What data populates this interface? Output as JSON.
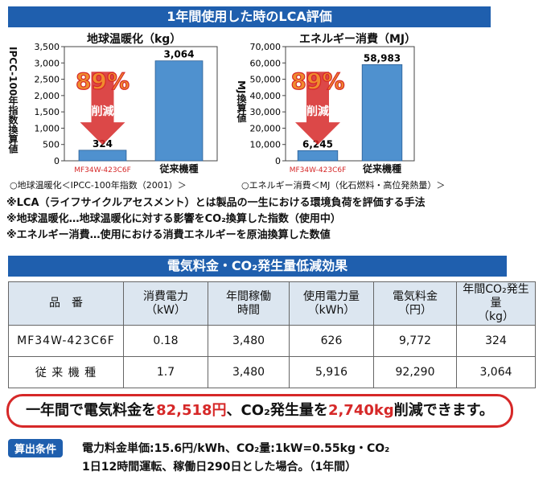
{
  "header": {
    "title": "1年間使用した時のLCA評価"
  },
  "chart_data": [
    {
      "type": "bar",
      "title": "地球温暖化（kg）",
      "ylabel": "IPCC-100年指数換算値",
      "categories": [
        "MF34W-423C6F",
        "従来機種"
      ],
      "values": [
        324,
        3064
      ],
      "value_labels": [
        "324",
        "3,064"
      ],
      "ylim": [
        0,
        3500
      ],
      "yticks": [
        0,
        500,
        1000,
        1500,
        2000,
        2500,
        3000,
        3500
      ],
      "ytick_labels": [
        "0",
        "500",
        "1,000",
        "1,500",
        "2,000",
        "2,500",
        "3,000",
        "3,500"
      ],
      "badge": "89%",
      "badge_sub": "削減",
      "caption": "○地球温暖化＜IPCC-100年指数（2001）＞"
    },
    {
      "type": "bar",
      "title": "エネルギー消費（MJ）",
      "ylabel": "MJ換算値",
      "categories": [
        "MF34W-423C6F",
        "従来機種"
      ],
      "values": [
        6245,
        58983
      ],
      "value_labels": [
        "6,245",
        "58,983"
      ],
      "ylim": [
        0,
        70000
      ],
      "yticks": [
        0,
        10000,
        20000,
        30000,
        40000,
        50000,
        60000,
        70000
      ],
      "ytick_labels": [
        "0",
        "10,000",
        "20,000",
        "30,000",
        "40,000",
        "50,000",
        "60,000",
        "70,000"
      ],
      "badge": "89%",
      "badge_sub": "削減",
      "caption": "○エネルギー消費＜MJ（化石燃料・高位発熱量）＞"
    }
  ],
  "notes": [
    "※LCA（ライフサイクルアセスメント）とは製品の一生における環境負荷を評価する手法",
    "※地球温暖化…地球温暖化に対する影響をCO₂換算した指数（使用中）",
    "※エネルギー消費…使用における消費エネルギーを原油換算した数値"
  ],
  "section2": {
    "title": "電気料金・CO₂発生量低減効果"
  },
  "table": {
    "headers": [
      "品　番",
      "消費電力\n（kW）",
      "年間稼働\n時間",
      "使用電力量\n（kWh）",
      "電気料金\n（円）",
      "年間CO₂発生量\n（kg）"
    ],
    "rows": [
      [
        "MF34W-423C6F",
        "0.18",
        "3,480",
        "626",
        "9,772",
        "324"
      ],
      [
        "従 来 機 種",
        "1.7",
        "3,480",
        "5,916",
        "92,290",
        "3,064"
      ]
    ]
  },
  "summary": {
    "pre": "一年間で電気料金を",
    "amount_yen": "82,518円",
    "mid": "、CO₂発生量を",
    "amount_kg": "2,740kg",
    "post": "削減できます。"
  },
  "conditions": {
    "tag": "算出条件",
    "line1": "電力料金単価:15.6円/kWh、CO₂量:1kW=0.55kg・CO₂",
    "line2": "1日12時間運転、稼働日290日とした場合。（1年間）"
  },
  "colors": {
    "banner": "#1f5fae",
    "bar": "#4f91cf",
    "accent_red": "#d62828",
    "badge_orange": "#f08c2e",
    "table_header": "#dce6f0"
  }
}
